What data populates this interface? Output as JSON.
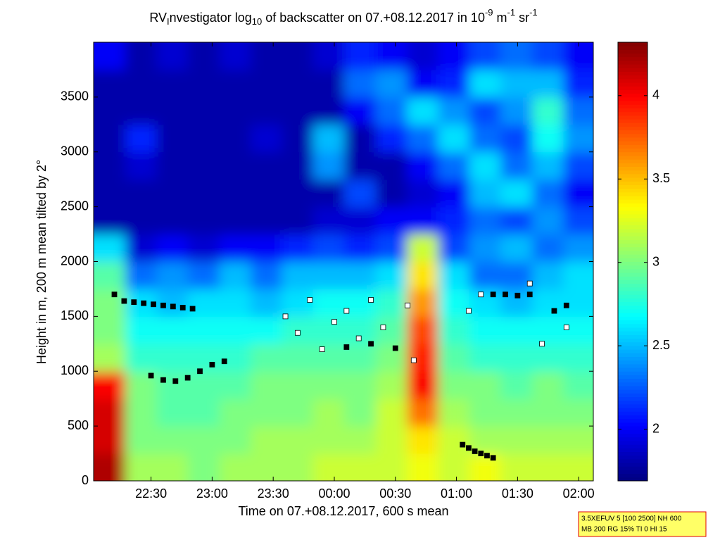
{
  "chart_data": {
    "type": "heatmap",
    "title_parts": [
      {
        "text": "RV",
        "shift": "base"
      },
      {
        "text": "I",
        "shift": "sub"
      },
      {
        "text": "nvestigator log",
        "shift": "base"
      },
      {
        "text": "10",
        "shift": "sub"
      },
      {
        "text": " of backscatter on 07.+08.12.2017 in 10",
        "shift": "base"
      },
      {
        "text": "-9",
        "shift": "sup"
      },
      {
        "text": " m",
        "shift": "base"
      },
      {
        "text": "-1",
        "shift": "sup"
      },
      {
        "text": " sr",
        "shift": "base"
      },
      {
        "text": "-1",
        "shift": "sup"
      }
    ],
    "xlabel": "Time on 07.+08.12.2017, 600 s mean",
    "ylabel": "Height in m, 200 m mean tilted by 2°",
    "xlim": [
      22.03,
      26.12
    ],
    "xticks": [
      {
        "value": 22.5,
        "label": "22:30"
      },
      {
        "value": 23,
        "label": "23:00"
      },
      {
        "value": 23.5,
        "label": "23:30"
      },
      {
        "value": 24,
        "label": "00:00"
      },
      {
        "value": 24.5,
        "label": "00:30"
      },
      {
        "value": 25,
        "label": "01:00"
      },
      {
        "value": 25.5,
        "label": "01:30"
      },
      {
        "value": 26,
        "label": "02:00"
      }
    ],
    "ylim": [
      0,
      4000
    ],
    "yticks": [
      0,
      500,
      1000,
      1500,
      2000,
      2500,
      3000,
      3500
    ],
    "clim": [
      1.69,
      4.32
    ],
    "cticks": [
      2,
      2.5,
      3,
      3.5,
      4
    ],
    "colormap": "jet",
    "x": [
      22.16,
      22.42,
      22.67,
      22.93,
      23.19,
      23.44,
      23.7,
      23.95,
      24.21,
      24.47,
      24.72,
      24.98,
      25.23,
      25.49,
      25.75,
      26.0
    ],
    "y": [
      125,
      375,
      625,
      875,
      1125,
      1375,
      1625,
      1875,
      2125,
      2375,
      2625,
      2875,
      3125,
      3375,
      3625,
      3875
    ],
    "z": [
      [
        4.2,
        3.1,
        3.1,
        3.0,
        3.1,
        3.1,
        3.1,
        3.2,
        3.2,
        3.2,
        3.3,
        3.2,
        3.3,
        3.2,
        3.2,
        3.2
      ],
      [
        4.1,
        3.0,
        3.0,
        3.0,
        3.0,
        3.1,
        3.1,
        3.1,
        3.1,
        3.2,
        3.4,
        3.2,
        3.1,
        3.1,
        3.1,
        3.1
      ],
      [
        4.1,
        3.0,
        2.9,
        2.9,
        3.0,
        3.0,
        3.0,
        3.1,
        3.0,
        3.2,
        3.7,
        3.1,
        3.0,
        3.0,
        3.0,
        3.0
      ],
      [
        4.0,
        3.0,
        2.9,
        2.9,
        2.9,
        3.0,
        3.0,
        3.0,
        3.0,
        3.1,
        4.0,
        3.0,
        3.0,
        2.9,
        3.0,
        2.9
      ],
      [
        3.1,
        2.8,
        2.8,
        2.8,
        2.8,
        2.9,
        2.9,
        2.9,
        2.9,
        3.0,
        3.9,
        2.9,
        2.8,
        2.8,
        2.8,
        2.8
      ],
      [
        3.0,
        2.7,
        2.7,
        2.7,
        2.7,
        2.7,
        2.8,
        2.8,
        2.8,
        2.9,
        3.8,
        2.8,
        2.7,
        2.7,
        2.7,
        2.7
      ],
      [
        3.0,
        2.6,
        2.5,
        2.6,
        2.6,
        2.5,
        2.6,
        2.7,
        2.7,
        2.8,
        3.6,
        2.7,
        2.6,
        2.5,
        2.6,
        2.6
      ],
      [
        2.9,
        2.3,
        2.4,
        2.3,
        2.5,
        2.3,
        2.5,
        2.5,
        2.5,
        2.6,
        3.4,
        2.6,
        2.3,
        2.3,
        2.5,
        2.6
      ],
      [
        2.6,
        1.9,
        2.0,
        1.9,
        2.0,
        2.0,
        2.1,
        2.2,
        2.1,
        2.2,
        3.2,
        2.2,
        2.4,
        2.5,
        2.3,
        2.4
      ],
      [
        1.8,
        1.8,
        1.8,
        1.8,
        1.8,
        1.8,
        1.8,
        1.9,
        1.9,
        2.0,
        2.0,
        2.1,
        2.3,
        2.2,
        2.4,
        2.2
      ],
      [
        1.8,
        1.8,
        1.8,
        1.8,
        1.8,
        1.8,
        1.8,
        1.8,
        2.2,
        1.8,
        1.9,
        2.0,
        2.5,
        2.6,
        2.3,
        2.0
      ],
      [
        1.8,
        1.9,
        1.8,
        1.8,
        1.8,
        1.8,
        1.8,
        2.4,
        1.8,
        1.8,
        2.0,
        2.3,
        2.6,
        2.3,
        2.5,
        2.2
      ],
      [
        1.8,
        2.1,
        1.8,
        1.8,
        1.8,
        1.9,
        1.8,
        2.5,
        1.8,
        2.1,
        2.3,
        2.6,
        2.3,
        2.2,
        2.7,
        2.4
      ],
      [
        1.8,
        1.8,
        1.8,
        1.8,
        1.8,
        1.8,
        1.8,
        1.8,
        2.0,
        2.3,
        2.6,
        2.4,
        2.2,
        2.4,
        2.8,
        2.3
      ],
      [
        1.8,
        1.8,
        1.8,
        1.8,
        1.8,
        1.8,
        1.8,
        1.8,
        2.3,
        2.4,
        2.0,
        2.1,
        2.6,
        2.5,
        2.5,
        2.1
      ],
      [
        2.0,
        1.8,
        1.9,
        1.8,
        1.9,
        1.8,
        1.8,
        1.9,
        2.1,
        2.0,
        1.9,
        2.0,
        2.2,
        2.3,
        2.2,
        2.0
      ]
    ],
    "markers": [
      {
        "color": "#000000",
        "x": [
          22.2,
          22.28,
          22.36,
          22.44,
          22.52,
          22.6,
          22.68,
          22.76,
          22.84,
          22.5,
          22.6,
          22.7,
          22.8,
          22.9,
          23.0,
          23.1,
          24.1,
          24.3,
          24.5,
          25.3,
          25.4,
          25.5,
          25.6,
          25.8,
          25.9,
          25.05,
          25.1,
          25.15,
          25.2,
          25.25,
          25.3
        ],
        "y": [
          1700,
          1640,
          1630,
          1620,
          1610,
          1600,
          1590,
          1580,
          1570,
          960,
          920,
          910,
          940,
          1000,
          1060,
          1090,
          1220,
          1250,
          1210,
          1700,
          1700,
          1690,
          1700,
          1550,
          1600,
          330,
          300,
          270,
          250,
          230,
          210
        ]
      },
      {
        "color": "#ffffff",
        "x": [
          23.6,
          23.7,
          23.8,
          23.9,
          24.0,
          24.1,
          24.2,
          24.3,
          24.4,
          24.6,
          24.65,
          25.1,
          25.2,
          25.6,
          25.7,
          25.9
        ],
        "y": [
          1500,
          1350,
          1650,
          1200,
          1450,
          1550,
          1300,
          1650,
          1400,
          1600,
          1100,
          1550,
          1700,
          1800,
          1250,
          1400
        ]
      }
    ],
    "note_lines": [
      "3.5XEFUV 5 [100 2500] NH 600",
      "MB 200 RG 15% TI 0 HI 15"
    ]
  }
}
